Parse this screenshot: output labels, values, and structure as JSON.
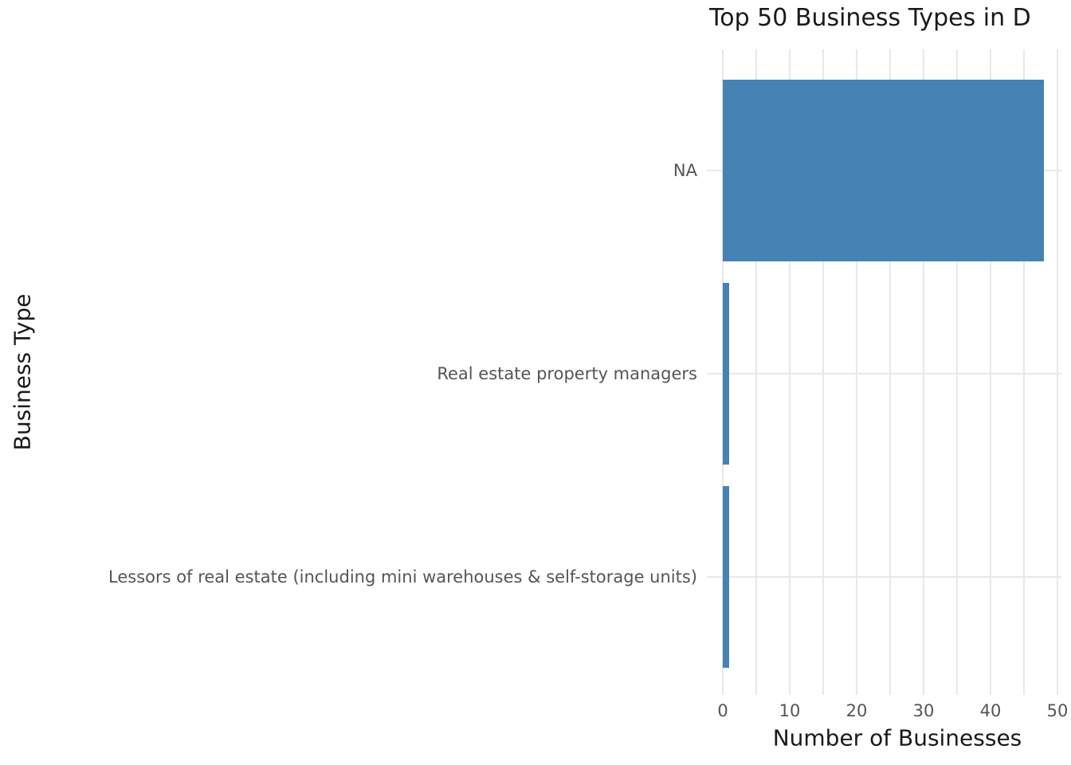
{
  "chart_data": {
    "type": "bar",
    "orientation": "horizontal",
    "title": "Top 50 Business Types in D",
    "title_note": "cut off at right edge of screenshot",
    "xlabel": "Number of Businesses",
    "ylabel": "Business Type",
    "categories": [
      "NA",
      "Real estate property managers",
      "Lessors of real estate (including mini warehouses & self-storage units)"
    ],
    "values": [
      48,
      1,
      1
    ],
    "xticks": [
      0,
      10,
      20,
      30,
      40,
      50
    ],
    "xlim": [
      0,
      50
    ],
    "grid": true,
    "grid_step": 5,
    "legend": "none",
    "colors": {
      "bar": "#4682B4",
      "grid": "#E8E8E8",
      "tick_label": "#555555",
      "title": "#1a1a1a",
      "background": "#ffffff"
    }
  }
}
